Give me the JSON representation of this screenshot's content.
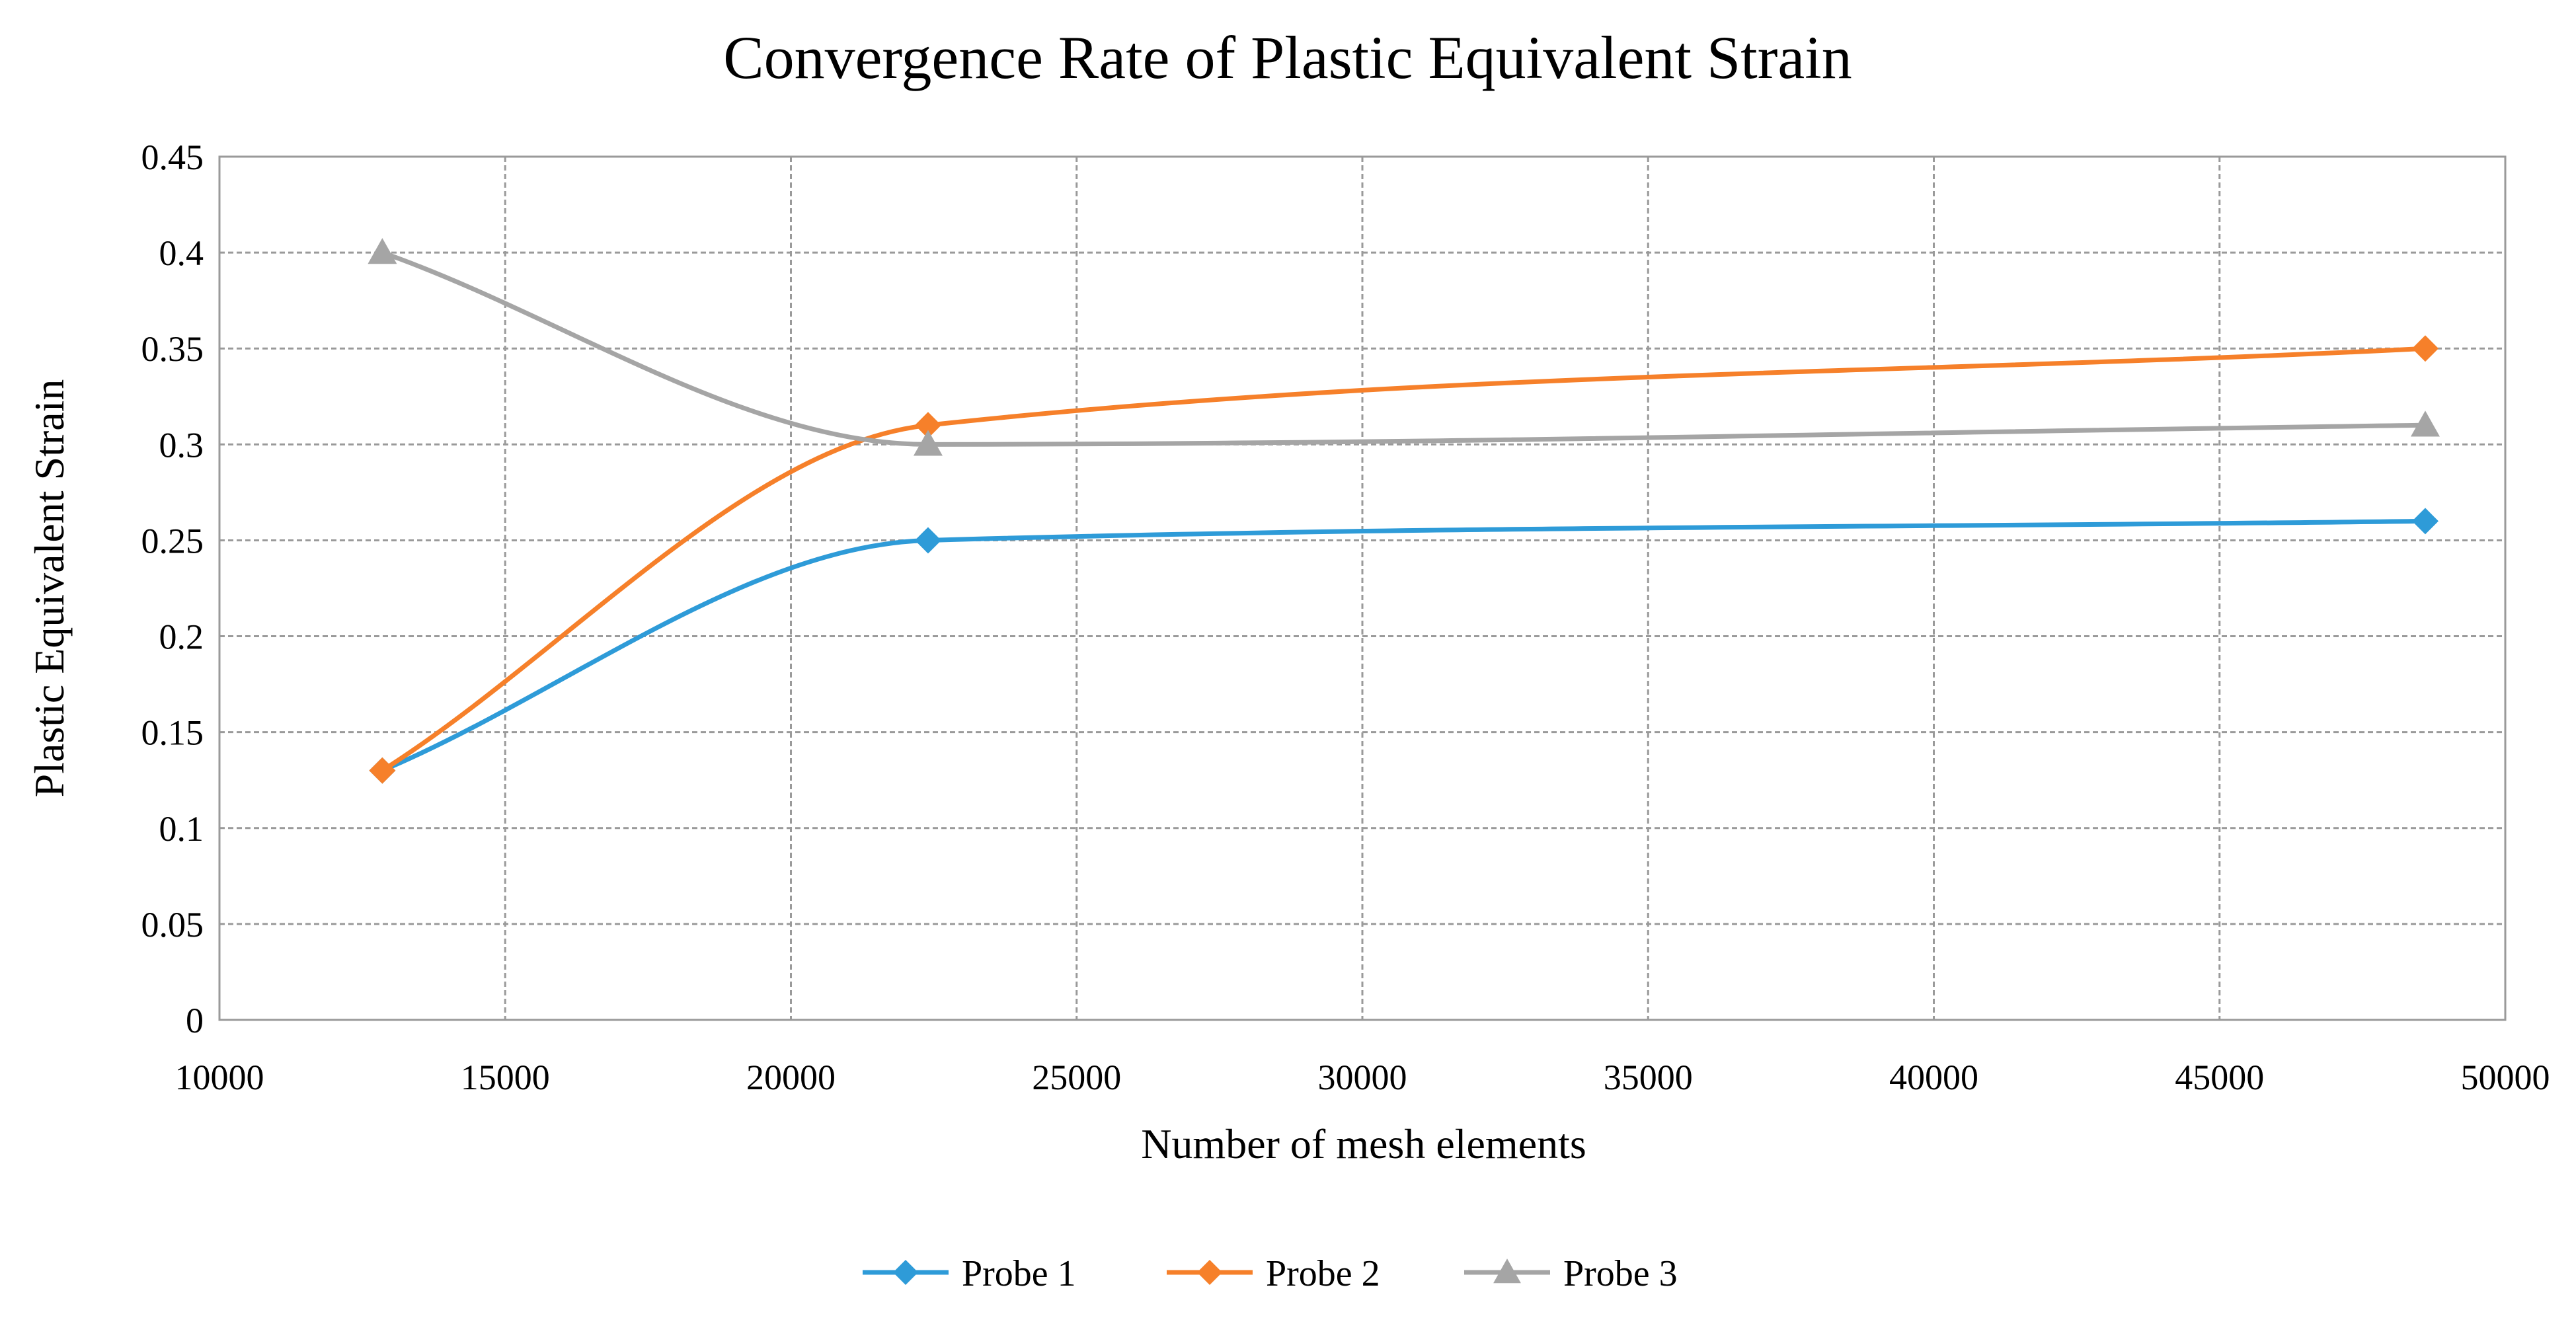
{
  "chart_data": {
    "type": "line",
    "title": "Convergence Rate of Plastic Equivalent Strain",
    "xlabel": "Number of mesh elements",
    "ylabel": "Plastic Equivalent Strain",
    "xlim": [
      10000,
      50000
    ],
    "ylim": [
      0,
      0.45
    ],
    "x_ticks": [
      10000,
      15000,
      20000,
      25000,
      30000,
      35000,
      40000,
      45000,
      50000
    ],
    "x_tick_labels": [
      "10000",
      "15000",
      "20000",
      "25000",
      "30000",
      "35000",
      "40000",
      "45000",
      "50000"
    ],
    "y_ticks": [
      0,
      0.05,
      0.1,
      0.15,
      0.2,
      0.25,
      0.3,
      0.35,
      0.4,
      0.45
    ],
    "y_tick_labels": [
      "0",
      "0.05",
      "0.1",
      "0.15",
      "0.2",
      "0.25",
      "0.3",
      "0.35",
      "0.4",
      "0.45"
    ],
    "grid": true,
    "smooth_lines": true,
    "legend_position": "bottom",
    "x": [
      12850,
      22400,
      48600
    ],
    "series": [
      {
        "name": "Probe 1",
        "values": [
          0.13,
          0.25,
          0.26
        ],
        "color": "#2E9BD8",
        "marker": "diamond"
      },
      {
        "name": "Probe 2",
        "values": [
          0.13,
          0.31,
          0.35
        ],
        "color": "#F6802A",
        "marker": "diamond"
      },
      {
        "name": "Probe 3",
        "values": [
          0.4,
          0.3,
          0.31
        ],
        "color": "#A5A5A5",
        "marker": "triangle"
      }
    ]
  }
}
